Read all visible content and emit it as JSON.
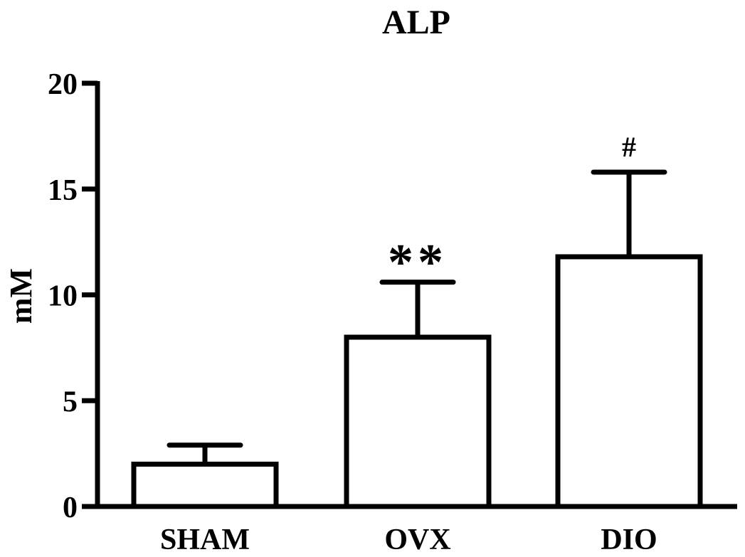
{
  "chart_data": {
    "type": "bar",
    "title": "ALP",
    "xlabel": "",
    "ylabel": "mM",
    "ylim": [
      0,
      20
    ],
    "yticks": [
      0,
      5,
      10,
      15,
      20
    ],
    "categories": [
      "SHAM",
      "OVX",
      "DIO"
    ],
    "values": [
      2.0,
      8.0,
      11.8
    ],
    "error": [
      0.9,
      2.6,
      4.0
    ],
    "annotations": [
      "",
      "**",
      "#"
    ],
    "grid": false,
    "legend": "none",
    "colors": {
      "bar_fill": "#ffffff",
      "stroke": "#000000"
    }
  }
}
